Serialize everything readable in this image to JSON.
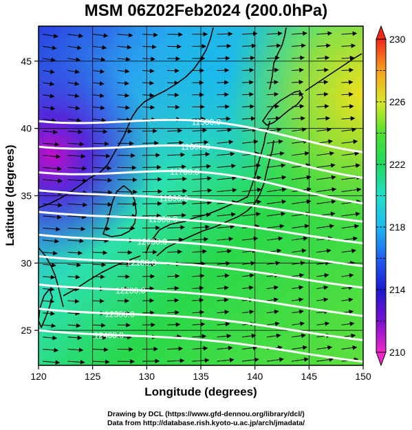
{
  "title": "MSM 06Z02Feb2024 (200.0hPa)",
  "footer": {
    "line1": "Drawing by DCL (https://www.gfd-dennou.org/library/dcl/)",
    "line2": "Data from http://database.rish.kyoto-u.ac.jp/arch/jmadata/"
  },
  "chart_data": {
    "type": "map",
    "xlabel": "Longitude (degrees)",
    "ylabel": "Latitude  (degrees)",
    "xlim": [
      120,
      150
    ],
    "ylim": [
      22.4,
      47.6
    ],
    "xticks": [
      120,
      125,
      130,
      135,
      140,
      145,
      150
    ],
    "yticks": [
      25,
      30,
      35,
      40,
      45
    ],
    "colorbar": {
      "range": [
        210,
        230
      ],
      "tick_labels": [
        210,
        214,
        218,
        222,
        226,
        230
      ]
    },
    "height_contours": [
      {
        "label": "11500.0",
        "lat_at_east": 38.8
      },
      {
        "label": "11600.0",
        "lat_at_east": 36.9
      },
      {
        "label": "11700.0",
        "lat_at_east": 35.0
      },
      {
        "label": "11800.0",
        "lat_at_east": 33.3
      },
      {
        "label": "11900.0",
        "lat_at_east": 31.7
      },
      {
        "label": "12000.0",
        "lat_at_east": 30.0
      },
      {
        "label": "12100.0",
        "lat_at_east": 28.4
      },
      {
        "label": "12200.0",
        "lat_at_east": 26.3
      },
      {
        "label": "12300.0",
        "lat_at_east": 24.5
      },
      {
        "label": "12400.0",
        "lat_at_east": 22.9
      }
    ]
  }
}
